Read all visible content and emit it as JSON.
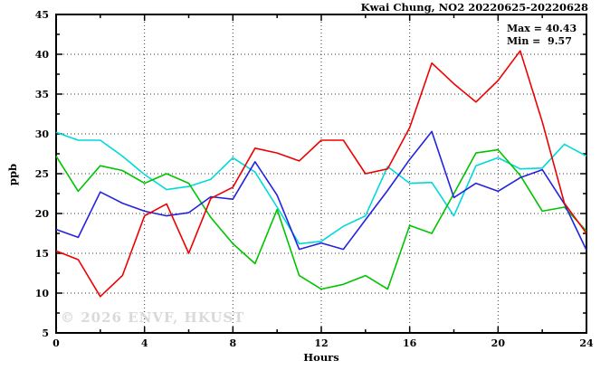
{
  "title": "Kwai Chung, NO2 20220625-20220628",
  "annotation": {
    "max_label": "Max = 40.43",
    "min_label": "Min =  9.57"
  },
  "watermark": "© 2026 ENVF, HKUST",
  "axis": {
    "ylabel": "ppb",
    "xlabel": "Hours"
  },
  "chart_data": {
    "type": "line",
    "title": "Kwai Chung, NO2 20220625-20220628",
    "xlabel": "Hours",
    "ylabel": "ppb",
    "xlim": [
      0,
      24
    ],
    "ylim": [
      5,
      45
    ],
    "x_major_ticks": [
      0,
      4,
      8,
      12,
      16,
      20,
      24
    ],
    "x_minor_ticks": [
      2,
      6,
      10,
      14,
      18,
      22
    ],
    "y_major_ticks": [
      5,
      10,
      15,
      20,
      25,
      30,
      35,
      40,
      45
    ],
    "y_minor_ticks": [
      7.5,
      12.5,
      17.5,
      22.5,
      27.5,
      32.5,
      37.5,
      42.5
    ],
    "grid": "dotted-at-major-ticks",
    "legend_position": "none",
    "marker": "asterisk",
    "x": [
      0,
      1,
      2,
      3,
      4,
      5,
      6,
      7,
      8,
      9,
      10,
      11,
      12,
      13,
      14,
      15,
      16,
      17,
      18,
      19,
      20,
      21,
      22,
      23,
      24
    ],
    "series": [
      {
        "name": "cyan",
        "color": "#00d9d9",
        "values": [
          30.2,
          29.2,
          29.2,
          27.2,
          24.9,
          23.0,
          23.4,
          24.3,
          27.0,
          25.2,
          20.8,
          16.2,
          16.5,
          18.4,
          19.7,
          25.9,
          23.8,
          23.9,
          19.7,
          26.0,
          27.0,
          25.6,
          25.7,
          28.7,
          27.2
        ]
      },
      {
        "name": "green",
        "color": "#00c400",
        "values": [
          27.2,
          22.8,
          26.0,
          25.4,
          23.8,
          25.0,
          23.8,
          19.5,
          16.2,
          13.7,
          20.5,
          12.2,
          10.5,
          11.1,
          12.2,
          10.5,
          18.5,
          17.5,
          22.5,
          27.6,
          28.0,
          24.8,
          20.3,
          20.8,
          17.8
        ]
      },
      {
        "name": "blue",
        "color": "#2323dd",
        "values": [
          18.0,
          17.0,
          22.7,
          21.3,
          20.3,
          19.7,
          20.1,
          22.1,
          21.8,
          26.5,
          22.3,
          15.5,
          16.3,
          15.5,
          19.2,
          22.9,
          26.8,
          30.3,
          22.0,
          23.8,
          22.8,
          24.5,
          25.5,
          21.2,
          15.4
        ]
      },
      {
        "name": "red",
        "color": "#ee0000",
        "values": [
          15.3,
          14.2,
          9.57,
          12.2,
          19.7,
          21.2,
          15.0,
          21.9,
          23.3,
          28.2,
          27.6,
          26.6,
          29.2,
          29.2,
          25.0,
          25.6,
          30.8,
          38.9,
          36.3,
          34.0,
          36.7,
          40.43,
          31.5,
          21.3,
          17.5
        ]
      }
    ],
    "stats": {
      "max": 40.43,
      "min": 9.57
    }
  }
}
